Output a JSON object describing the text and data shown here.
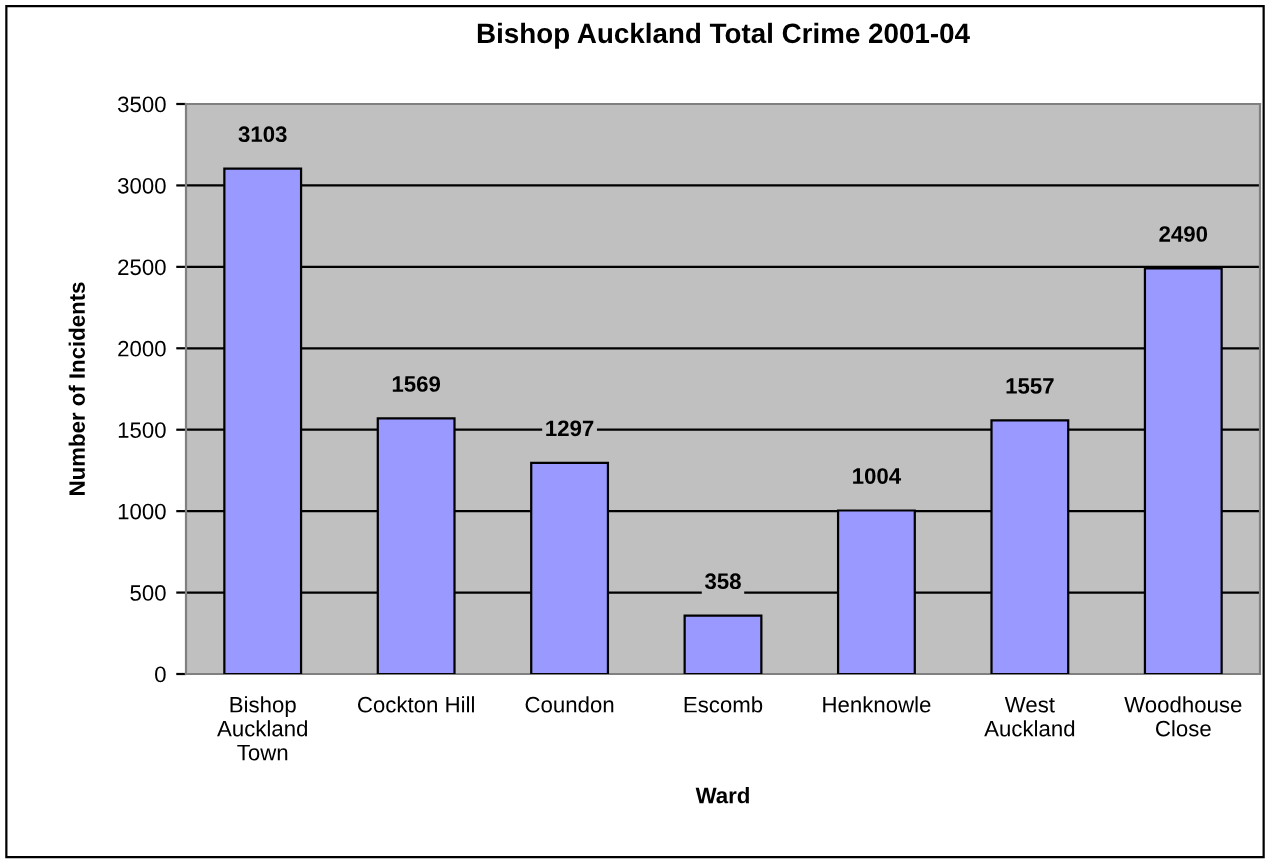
{
  "chart_data": {
    "type": "bar",
    "title": "Bishop Auckland Total Crime 2001-04",
    "xlabel": "Ward",
    "ylabel": "Number of Incidents",
    "categories": [
      "Bishop\nAuckland\nTown",
      "Cockton Hill",
      "Coundon",
      "Escomb",
      "Henknowle",
      "West\nAuckland",
      "Woodhouse\nClose"
    ],
    "values": [
      3103,
      1569,
      1297,
      358,
      1004,
      1557,
      2490
    ],
    "color": "#9999ff",
    "ylim": [
      0,
      3500
    ],
    "yticks": [
      0,
      500,
      1000,
      1500,
      2000,
      2500,
      3000,
      3500
    ],
    "grid": "y",
    "data_labels": true
  }
}
